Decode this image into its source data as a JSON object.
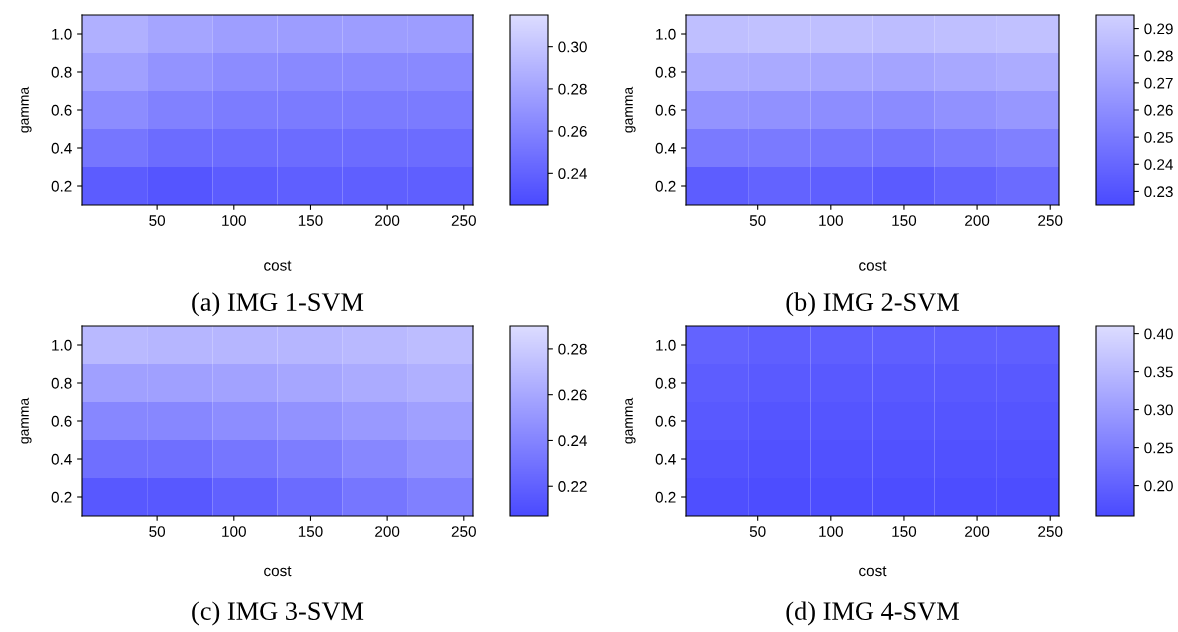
{
  "chart_data": [
    {
      "type": "heatmap",
      "title": "(a) IMG 1-SVM",
      "xlabel": "cost",
      "ylabel": "gamma",
      "x": [
        22.25,
        64.75,
        107.25,
        149.75,
        192.25,
        234.75
      ],
      "y": [
        0.2,
        0.4,
        0.6,
        0.8,
        1.0
      ],
      "xlim": [
        1,
        256
      ],
      "ylim": [
        0.1,
        1.1
      ],
      "xticks": [
        50,
        100,
        150,
        200,
        250
      ],
      "yticks": [
        {
          "value": 0.2,
          "label": "0.2"
        },
        {
          "value": 0.4,
          "label": "0.4"
        },
        {
          "value": 0.6,
          "label": "0.6"
        },
        {
          "value": 0.8,
          "label": "0.8"
        },
        {
          "value": 1.0,
          "label": "1.0"
        }
      ],
      "colors": [
        "#4a4aff",
        "#dcdcff"
      ],
      "clim": [
        0.225,
        0.315
      ],
      "cticks": [
        {
          "value": 0.24,
          "label": "0.24"
        },
        {
          "value": 0.26,
          "label": "0.26"
        },
        {
          "value": 0.28,
          "label": "0.28"
        },
        {
          "value": 0.3,
          "label": "0.30"
        }
      ],
      "cells": [
        [
          0.236,
          0.232,
          0.236,
          0.238,
          0.238,
          0.238
        ],
        [
          0.252,
          0.246,
          0.246,
          0.246,
          0.246,
          0.246
        ],
        [
          0.266,
          0.259,
          0.256,
          0.255,
          0.255,
          0.255
        ],
        [
          0.278,
          0.27,
          0.266,
          0.264,
          0.264,
          0.264
        ],
        [
          0.288,
          0.281,
          0.277,
          0.276,
          0.276,
          0.276
        ]
      ]
    },
    {
      "type": "heatmap",
      "title": "(b) IMG 2-SVM",
      "xlabel": "cost",
      "ylabel": "gamma",
      "x": [
        22.25,
        64.75,
        107.25,
        149.75,
        192.25,
        234.75
      ],
      "y": [
        0.2,
        0.4,
        0.6,
        0.8,
        1.0
      ],
      "xlim": [
        1,
        256
      ],
      "ylim": [
        0.1,
        1.1
      ],
      "xticks": [
        50,
        100,
        150,
        200,
        250
      ],
      "yticks": [
        {
          "value": 0.2,
          "label": "0.2"
        },
        {
          "value": 0.4,
          "label": "0.4"
        },
        {
          "value": 0.6,
          "label": "0.6"
        },
        {
          "value": 0.8,
          "label": "0.8"
        },
        {
          "value": 1.0,
          "label": "1.0"
        }
      ],
      "colors": [
        "#4a4aff",
        "#d0d0ff"
      ],
      "clim": [
        0.225,
        0.295
      ],
      "cticks": [
        0.23,
        0.24,
        0.25,
        0.26,
        0.27,
        0.28,
        0.29
      ],
      "cells": [
        [
          0.235,
          0.238,
          0.236,
          0.234,
          0.238,
          0.242
        ],
        [
          0.25,
          0.25,
          0.248,
          0.247,
          0.25,
          0.253
        ],
        [
          0.263,
          0.262,
          0.26,
          0.259,
          0.262,
          0.265
        ],
        [
          0.276,
          0.275,
          0.273,
          0.272,
          0.274,
          0.276
        ],
        [
          0.286,
          0.287,
          0.286,
          0.285,
          0.286,
          0.287
        ]
      ]
    },
    {
      "type": "heatmap",
      "title": "(c) IMG 3-SVM",
      "xlabel": "cost",
      "ylabel": "gamma",
      "x": [
        22.25,
        64.75,
        107.25,
        149.75,
        192.25,
        234.75
      ],
      "y": [
        0.2,
        0.4,
        0.6,
        0.8,
        1.0
      ],
      "xlim": [
        1,
        256
      ],
      "ylim": [
        0.1,
        1.1
      ],
      "xticks": [
        50,
        100,
        150,
        200,
        250
      ],
      "yticks": [
        {
          "value": 0.2,
          "label": "0.2"
        },
        {
          "value": 0.4,
          "label": "0.4"
        },
        {
          "value": 0.6,
          "label": "0.6"
        },
        {
          "value": 0.8,
          "label": "0.8"
        },
        {
          "value": 1.0,
          "label": "1.0"
        }
      ],
      "colors": [
        "#4a4aff",
        "#dcdcff"
      ],
      "clim": [
        0.207,
        0.29
      ],
      "cticks": [
        0.22,
        0.24,
        0.26,
        0.28
      ],
      "cells": [
        [
          0.215,
          0.215,
          0.22,
          0.226,
          0.232,
          0.238
        ],
        [
          0.228,
          0.228,
          0.232,
          0.236,
          0.242,
          0.248
        ],
        [
          0.242,
          0.242,
          0.245,
          0.248,
          0.252,
          0.256
        ],
        [
          0.256,
          0.256,
          0.257,
          0.259,
          0.262,
          0.265
        ],
        [
          0.27,
          0.268,
          0.268,
          0.268,
          0.27,
          0.272
        ]
      ]
    },
    {
      "type": "heatmap",
      "title": "(d) IMG 4-SVM",
      "xlabel": "cost",
      "ylabel": "gamma",
      "x": [
        22.25,
        64.75,
        107.25,
        149.75,
        192.25,
        234.75
      ],
      "y": [
        0.2,
        0.4,
        0.6,
        0.8,
        1.0
      ],
      "xlim": [
        1,
        256
      ],
      "ylim": [
        0.1,
        1.1
      ],
      "xticks": [
        50,
        100,
        150,
        200,
        250
      ],
      "yticks": [
        {
          "value": 0.2,
          "label": "0.2"
        },
        {
          "value": 0.4,
          "label": "0.4"
        },
        {
          "value": 0.6,
          "label": "0.6"
        },
        {
          "value": 0.8,
          "label": "0.8"
        },
        {
          "value": 1.0,
          "label": "1.0"
        }
      ],
      "colors": [
        "#4a4aff",
        "#dcdcff"
      ],
      "clim": [
        0.16,
        0.41
      ],
      "cticks": [
        {
          "value": 0.2,
          "label": "0.20"
        },
        {
          "value": 0.25,
          "label": "0.25"
        },
        {
          "value": 0.3,
          "label": "0.30"
        },
        {
          "value": 0.35,
          "label": "0.35"
        },
        {
          "value": 0.4,
          "label": "0.40"
        }
      ],
      "cells": [
        [
          0.168,
          0.165,
          0.165,
          0.165,
          0.165,
          0.165
        ],
        [
          0.178,
          0.172,
          0.172,
          0.172,
          0.172,
          0.172
        ],
        [
          0.186,
          0.18,
          0.179,
          0.179,
          0.179,
          0.179
        ],
        [
          0.194,
          0.188,
          0.187,
          0.187,
          0.187,
          0.187
        ],
        [
          0.202,
          0.197,
          0.196,
          0.196,
          0.196,
          0.196
        ]
      ]
    }
  ]
}
